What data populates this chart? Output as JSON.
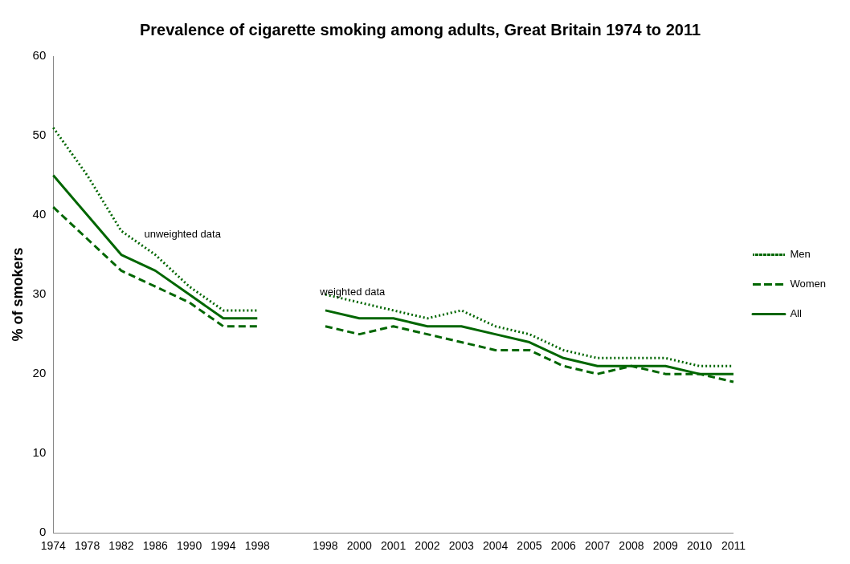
{
  "chart_data": {
    "type": "line",
    "title": "Prevalence of cigarette smoking among adults, Great Britain 1974 to 2011",
    "ylabel": "% of smokers",
    "categories": [
      "1974",
      "1978",
      "1982",
      "1986",
      "1990",
      "1994",
      "1998",
      null,
      "1998",
      "2000",
      "2001",
      "2002",
      "2003",
      "2004",
      "2005",
      "2006",
      "2007",
      "2008",
      "2009",
      "2010",
      "2011"
    ],
    "series": [
      {
        "name": "Men",
        "color": "#006600",
        "line_style": "dotted",
        "values": [
          51,
          45,
          38,
          35,
          31,
          28,
          28,
          null,
          30,
          29,
          28,
          27,
          28,
          26,
          25,
          23,
          22,
          22,
          22,
          21,
          21
        ]
      },
      {
        "name": "Women",
        "color": "#006600",
        "line_style": "dashed",
        "values": [
          41,
          37,
          33,
          31,
          29,
          26,
          26,
          null,
          26,
          25,
          26,
          25,
          24,
          23,
          23,
          21,
          20,
          21,
          20,
          20,
          19
        ]
      },
      {
        "name": "All",
        "color": "#006600",
        "line_style": "solid",
        "values": [
          45,
          40,
          35,
          33,
          30,
          27,
          27,
          null,
          28,
          27,
          27,
          26,
          26,
          25,
          24,
          22,
          21,
          21,
          21,
          20,
          20
        ]
      }
    ],
    "ylim": [
      0,
      60
    ],
    "yticks": [
      0,
      10,
      20,
      30,
      40,
      50,
      60
    ],
    "grid": false,
    "legend": "right",
    "marker": "none",
    "annotations": [
      "unweighted data",
      "weighted data"
    ]
  }
}
